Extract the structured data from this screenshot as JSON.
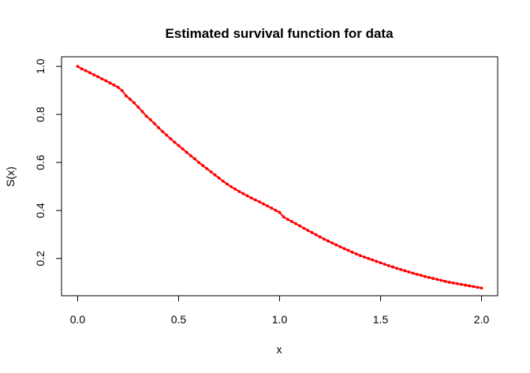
{
  "chart_data": {
    "type": "line",
    "title": "Estimated survival function for data",
    "xlabel": "x",
    "ylabel": "S(x)",
    "xlim": [
      -0.08,
      2.08
    ],
    "ylim": [
      0.045,
      1.04
    ],
    "x_ticks": [
      0.0,
      0.5,
      1.0,
      1.5,
      2.0
    ],
    "x_tick_labels": [
      "0.0",
      "0.5",
      "1.0",
      "1.5",
      "2.0"
    ],
    "y_ticks": [
      0.2,
      0.4,
      0.6,
      0.8,
      1.0
    ],
    "y_tick_labels": [
      "0.2",
      "0.4",
      "0.6",
      "0.8",
      "1.0"
    ],
    "grid": false,
    "legend": "none",
    "series_color": "#ff0000",
    "marker": "small-dot",
    "series": [
      {
        "x": [
          0.0,
          0.02,
          0.04,
          0.06,
          0.08,
          0.1,
          0.12,
          0.14,
          0.16,
          0.18,
          0.2,
          0.22,
          0.24,
          0.26,
          0.28,
          0.3,
          0.32,
          0.34,
          0.36,
          0.38,
          0.4,
          0.42,
          0.44,
          0.46,
          0.48,
          0.5,
          0.52,
          0.54,
          0.56,
          0.58,
          0.6,
          0.62,
          0.64,
          0.66,
          0.68,
          0.7,
          0.72,
          0.74,
          0.76,
          0.78,
          0.8,
          0.82,
          0.84,
          0.86,
          0.88,
          0.9,
          0.92,
          0.94,
          0.96,
          0.98,
          1.0,
          1.02,
          1.04,
          1.06,
          1.08,
          1.1,
          1.12,
          1.14,
          1.16,
          1.18,
          1.2,
          1.22,
          1.24,
          1.26,
          1.28,
          1.3,
          1.32,
          1.34,
          1.36,
          1.38,
          1.4,
          1.42,
          1.44,
          1.46,
          1.48,
          1.5,
          1.52,
          1.54,
          1.56,
          1.58,
          1.6,
          1.62,
          1.64,
          1.66,
          1.68,
          1.7,
          1.72,
          1.74,
          1.76,
          1.78,
          1.8,
          1.82,
          1.84,
          1.86,
          1.88,
          1.9,
          1.92,
          1.94,
          1.96,
          1.98,
          2.0
        ],
        "values": [
          1.0,
          0.99,
          0.982,
          0.974,
          0.965,
          0.957,
          0.948,
          0.94,
          0.931,
          0.922,
          0.913,
          0.899,
          0.877,
          0.863,
          0.848,
          0.83,
          0.812,
          0.793,
          0.778,
          0.762,
          0.745,
          0.729,
          0.714,
          0.699,
          0.684,
          0.67,
          0.656,
          0.642,
          0.628,
          0.615,
          0.6,
          0.587,
          0.574,
          0.561,
          0.548,
          0.535,
          0.522,
          0.51,
          0.499,
          0.489,
          0.479,
          0.47,
          0.461,
          0.452,
          0.444,
          0.436,
          0.427,
          0.419,
          0.41,
          0.401,
          0.392,
          0.373,
          0.363,
          0.354,
          0.345,
          0.336,
          0.326,
          0.317,
          0.308,
          0.299,
          0.29,
          0.281,
          0.273,
          0.265,
          0.257,
          0.249,
          0.241,
          0.234,
          0.226,
          0.219,
          0.212,
          0.206,
          0.2,
          0.194,
          0.188,
          0.182,
          0.176,
          0.17,
          0.165,
          0.159,
          0.154,
          0.149,
          0.144,
          0.139,
          0.134,
          0.13,
          0.125,
          0.121,
          0.117,
          0.113,
          0.109,
          0.105,
          0.101,
          0.098,
          0.095,
          0.092,
          0.089,
          0.086,
          0.083,
          0.08,
          0.077
        ]
      }
    ]
  }
}
